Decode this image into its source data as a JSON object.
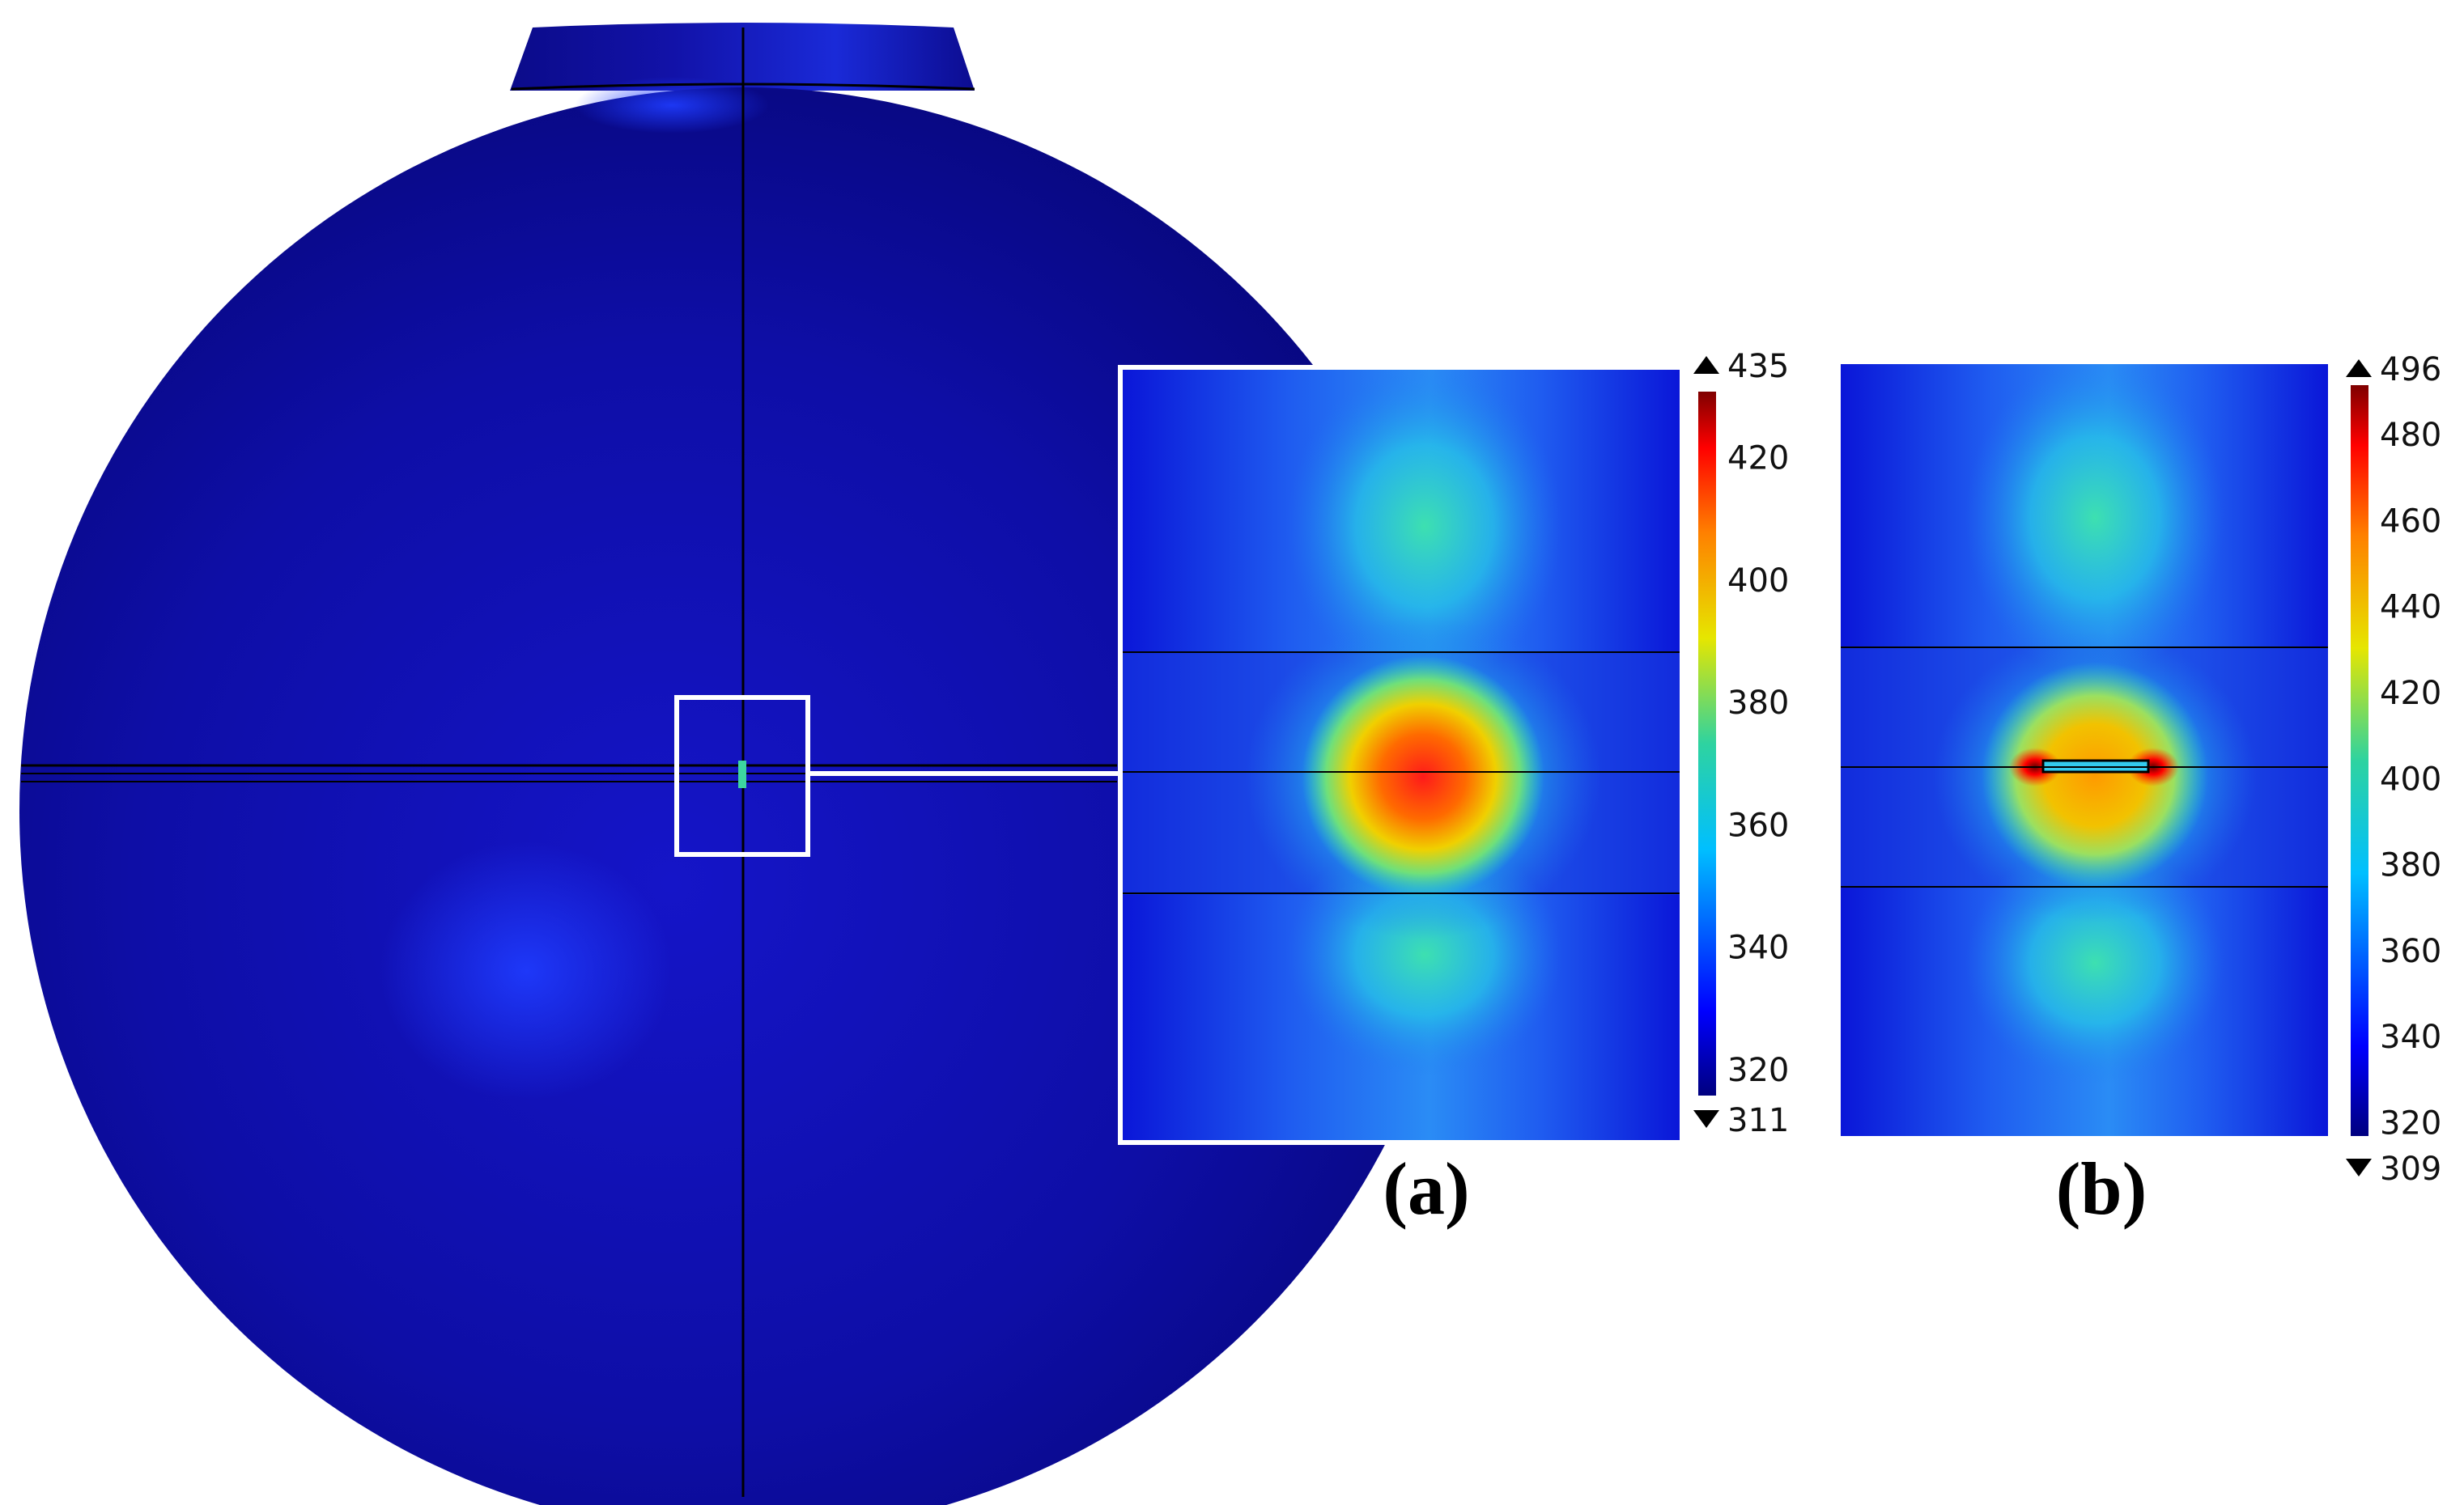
{
  "panels": {
    "a": {
      "label": "(a)",
      "colorbar": {
        "max": 435,
        "min": 311,
        "ticks": [
          420,
          400,
          380,
          360,
          340,
          320
        ]
      }
    },
    "b": {
      "label": "(b)",
      "colorbar": {
        "max": 496,
        "min": 309,
        "ticks": [
          480,
          460,
          440,
          420,
          400,
          380,
          360,
          340,
          320
        ]
      }
    }
  },
  "colors": {
    "sphere_blue": "#10109a",
    "colormap": [
      "#00007f",
      "#0000ff",
      "#00bfff",
      "#2ed3a0",
      "#e6e600",
      "#ff8000",
      "#ff0000",
      "#7f0000"
    ]
  }
}
